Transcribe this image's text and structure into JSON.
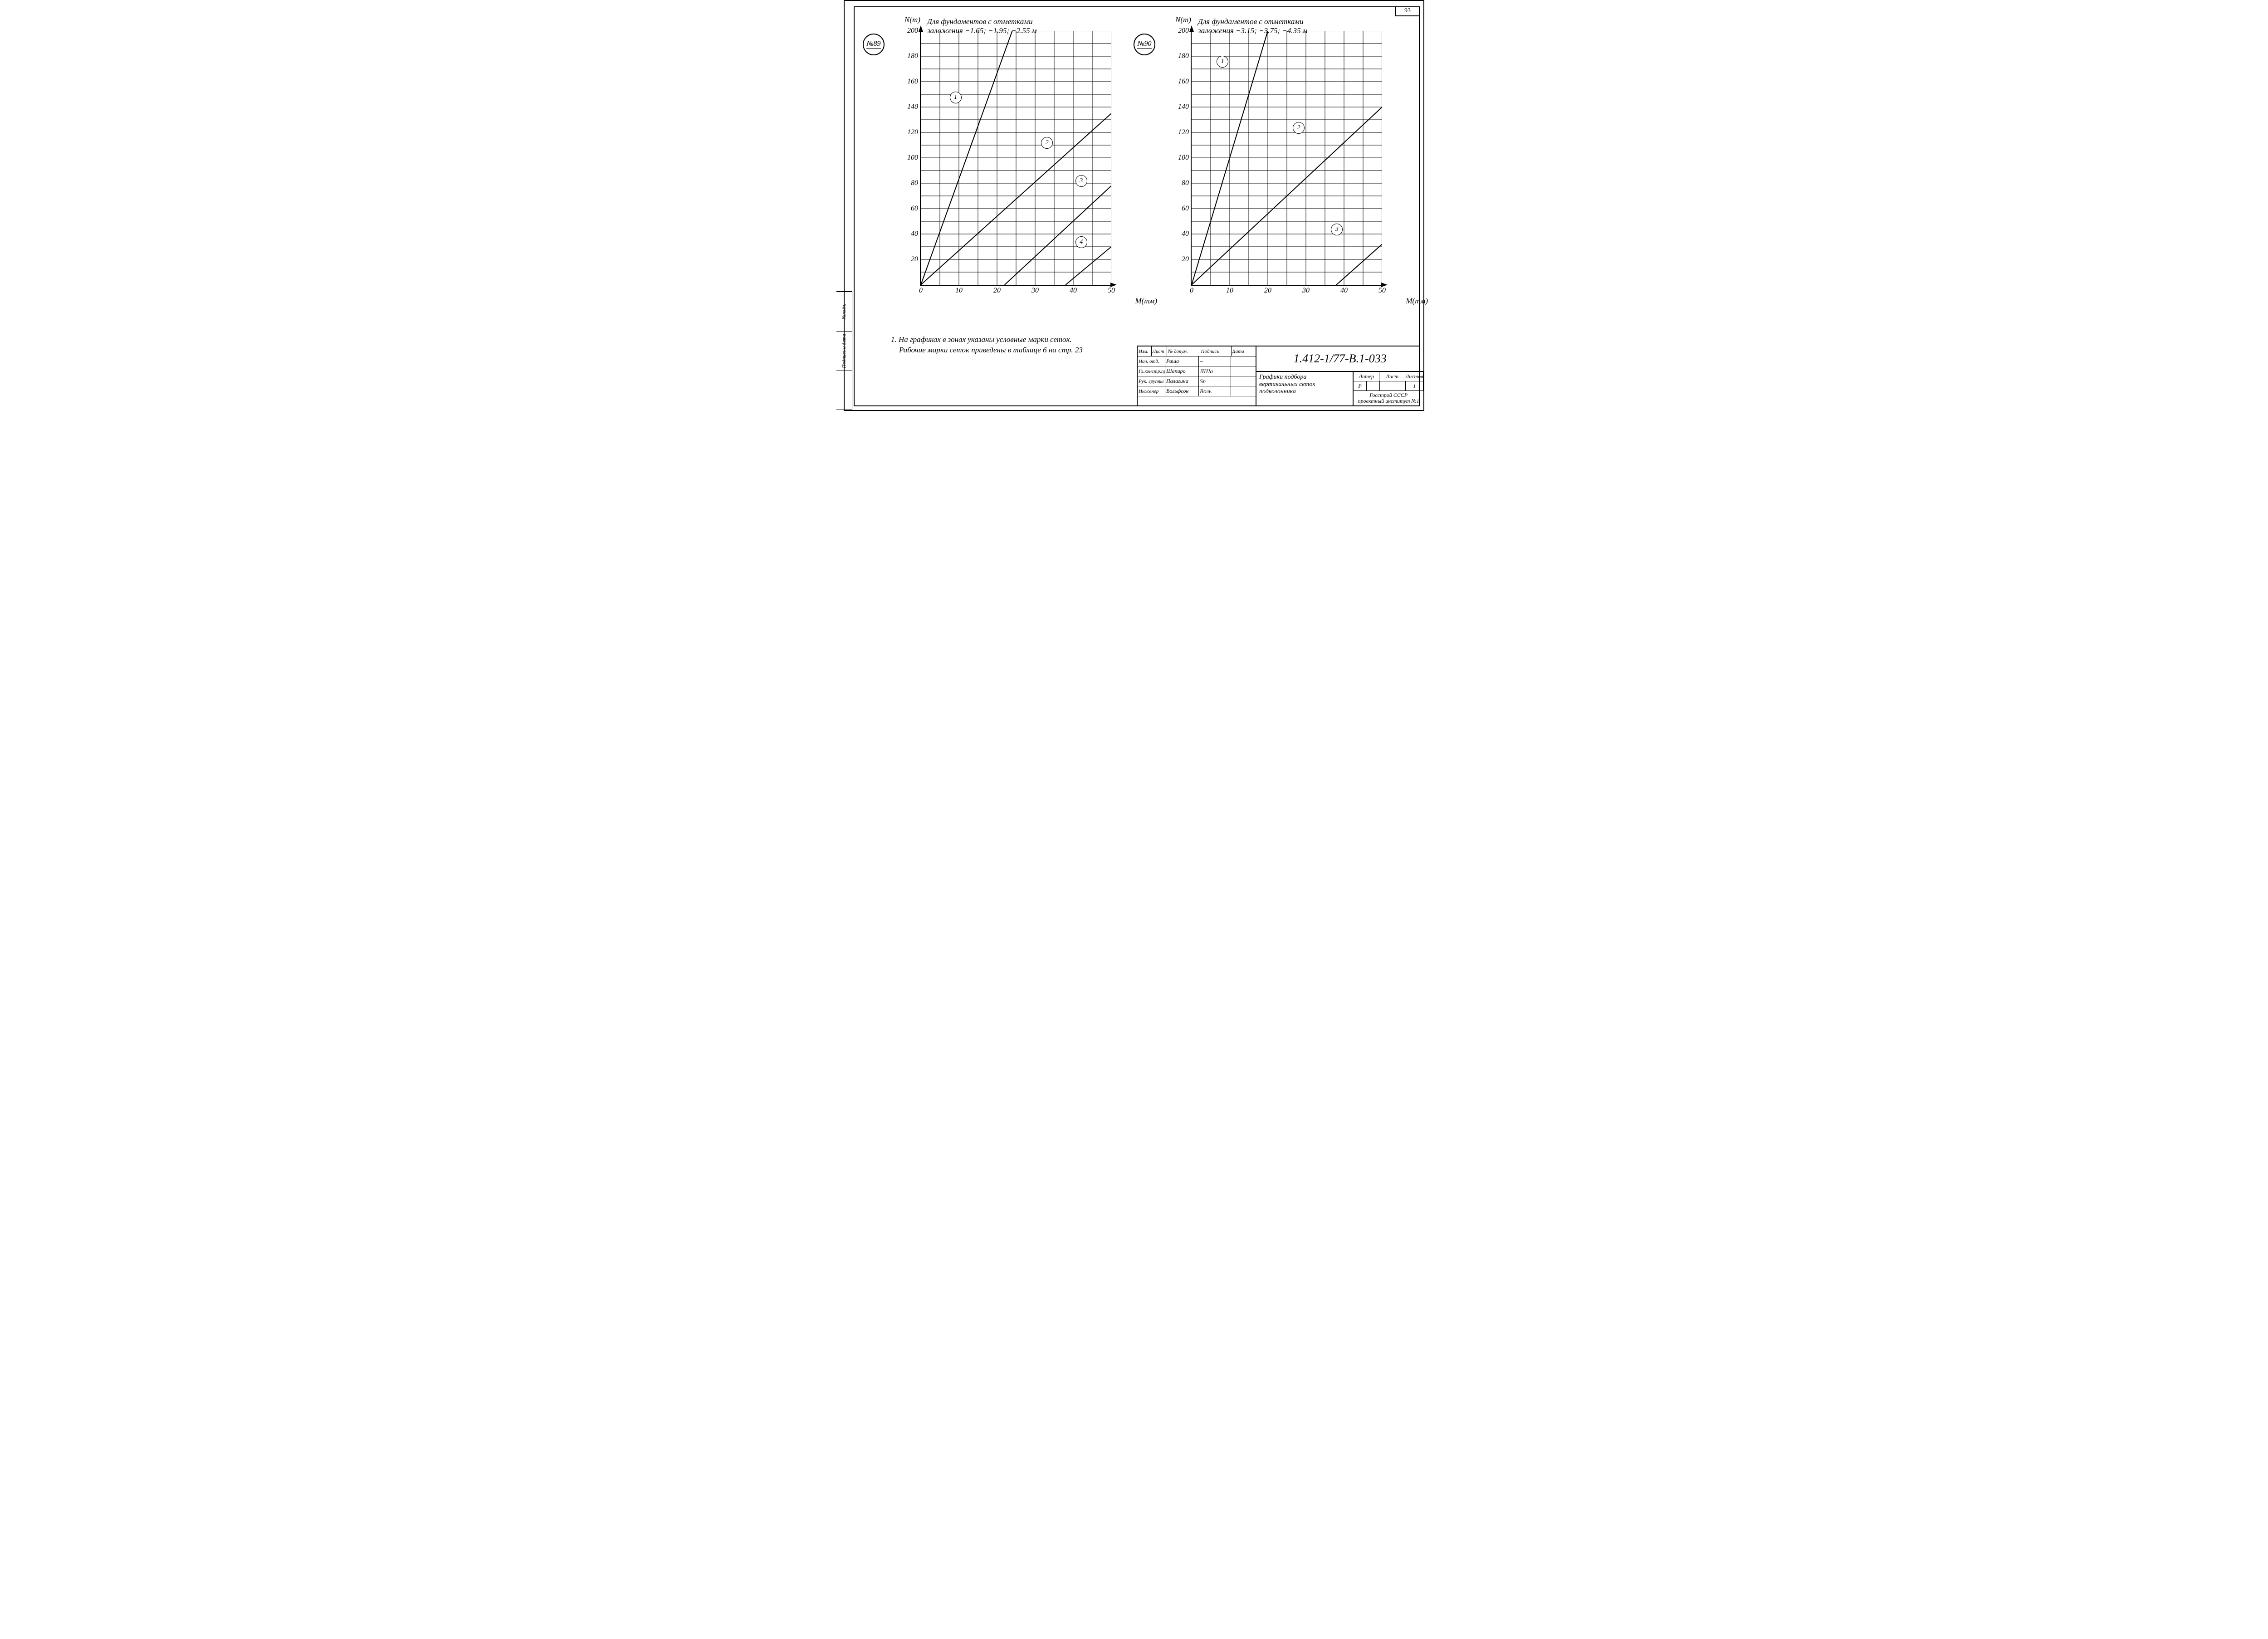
{
  "page_number": "93",
  "side_stamp": {
    "c1": "№подл.",
    "c2": "Подпись и дата",
    "c3": ""
  },
  "axis": {
    "y_label": "N(т)",
    "x_label": "M(тм)",
    "x_min": 0,
    "x_max": 50,
    "x_ticks": [
      0,
      10,
      20,
      30,
      40,
      50
    ],
    "y_min": 0,
    "y_max": 200,
    "y_ticks": [
      20,
      40,
      60,
      80,
      100,
      120,
      140,
      160,
      180,
      200
    ],
    "x_minor_step": 5,
    "y_minor_step": 10,
    "grid_color": "#000000",
    "line_color": "#000000",
    "line_width": 2,
    "tick_fontsize": 16
  },
  "charts": [
    {
      "badge": "№89",
      "title_l1": "Для фундаментов с отметками",
      "title_l2": "заложения −1.65; −1.95; −2.55 м",
      "curves": [
        {
          "id": "1",
          "points": [
            [
              0,
              0
            ],
            [
              24,
              200
            ]
          ],
          "badge_xy": [
            9,
            148
          ]
        },
        {
          "id": "2",
          "points": [
            [
              0,
              0
            ],
            [
              50,
              135
            ]
          ],
          "badge_xy": [
            33,
            112
          ]
        },
        {
          "id": "3",
          "points": [
            [
              22,
              0
            ],
            [
              50,
              78
            ]
          ],
          "badge_xy": [
            42,
            82
          ]
        },
        {
          "id": "4",
          "points": [
            [
              38,
              0
            ],
            [
              50,
              30
            ]
          ],
          "badge_xy": [
            42,
            34
          ]
        }
      ]
    },
    {
      "badge": "№90",
      "title_l1": "Для фундаментов с отметками",
      "title_l2": "заложения −3.15; −3.75; −4.35 м",
      "curves": [
        {
          "id": "1",
          "points": [
            [
              0,
              0
            ],
            [
              20,
              200
            ]
          ],
          "badge_xy": [
            8,
            176
          ]
        },
        {
          "id": "2",
          "points": [
            [
              0,
              0
            ],
            [
              50,
              140
            ]
          ],
          "badge_xy": [
            28,
            124
          ]
        },
        {
          "id": "3",
          "points": [
            [
              38,
              0
            ],
            [
              50,
              32
            ]
          ],
          "badge_xy": [
            38,
            44
          ]
        }
      ]
    }
  ],
  "note_l1": "1. На графиках в зонах указаны условные марки сеток.",
  "note_l2": "Рабочие марки сеток приведены в таблице 6 на стр. 23",
  "title_block": {
    "doc_number": "1.412-1/77-В.1-033",
    "header": {
      "c1": "Изм.",
      "c2": "Лист",
      "c3": "№ докум.",
      "c4": "Подпись",
      "c5": "Дата"
    },
    "rows": [
      {
        "role": "Нач. отд.",
        "name": "Раша",
        "sign": "~"
      },
      {
        "role": "Гл.констр.пр.",
        "name": "Шапиро",
        "sign": "ЛШа"
      },
      {
        "role": "Рук. группы",
        "name": "Палагина",
        "sign": "Sп"
      },
      {
        "role": "Инженер",
        "name": "Вольфсон",
        "sign": "Воль"
      }
    ],
    "desc_l1": "Графики подбора",
    "desc_l2": "вертикальных сеток",
    "desc_l3": "подколонника",
    "meta": {
      "liter": "Литер",
      "list": "Лист",
      "listov": "Листов",
      "p": "Р",
      "n_listov": "1"
    },
    "org_l1": "Госстрой СССР",
    "org_l2": "проектный институт №1"
  }
}
